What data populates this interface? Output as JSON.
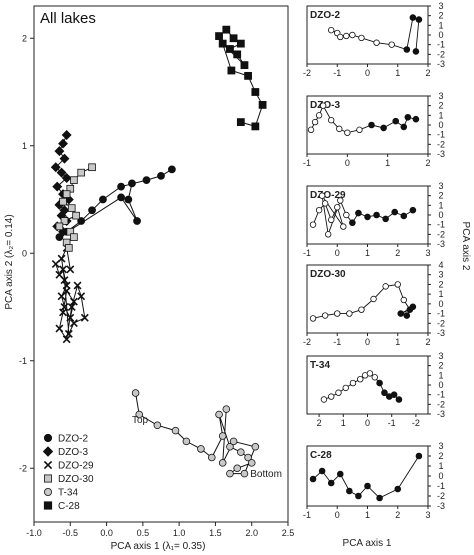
{
  "chart_data": {
    "type": "scatter",
    "main": {
      "title": "All lakes",
      "xlabel": "PCA axis 1 (λ₁= 0.35)",
      "ylabel": "PCA axis 2 (λ₂= 0.14)",
      "xlim": [
        -1.0,
        2.5
      ],
      "ylim": [
        -2.5,
        2.3
      ],
      "xticks": [
        -1.0,
        -0.5,
        0.0,
        0.5,
        1.0,
        1.5,
        2.0,
        2.5
      ],
      "xtick_labels": [
        "-1.0",
        "-0.5",
        "0.0",
        "0.5",
        "1.0",
        "1.5",
        "2.0",
        "2.5"
      ],
      "yticks": [
        -2,
        -1,
        0,
        1,
        2
      ],
      "ytick_labels": [
        "-2",
        "-1",
        "0",
        "1",
        "2"
      ],
      "annotations": [
        {
          "text": "Top",
          "x": 0.35,
          "y": -1.58
        },
        {
          "text": "Bottom",
          "x": 1.98,
          "y": -2.08
        }
      ],
      "legend": {
        "placement": "bottom-left",
        "entries": [
          {
            "label": "DZO-2",
            "marker": "circle-black"
          },
          {
            "label": "DZO-3",
            "marker": "diamond-black"
          },
          {
            "label": "DZO-29",
            "marker": "x"
          },
          {
            "label": "DZO-30",
            "marker": "square-gray"
          },
          {
            "label": "T-34",
            "marker": "circle-gray"
          },
          {
            "label": "C-28",
            "marker": "square-black"
          }
        ]
      },
      "series": [
        {
          "label": "DZO-2",
          "marker": "circle-black",
          "x": [
            0.9,
            0.75,
            0.55,
            0.2,
            -0.05,
            -0.2,
            -0.35,
            -0.55,
            -0.65,
            0.2,
            0.42,
            0.3,
            0.35
          ],
          "y": [
            0.78,
            0.72,
            0.68,
            0.62,
            0.5,
            0.4,
            0.3,
            0.2,
            0.15,
            0.52,
            0.3,
            0.5,
            0.65
          ]
        },
        {
          "label": "DZO-3",
          "marker": "diamond-black",
          "x": [
            -0.55,
            -0.6,
            -0.65,
            -0.58,
            -0.7,
            -0.62,
            -0.55,
            -0.68,
            -0.6,
            -0.52,
            -0.65,
            -0.58,
            -0.62,
            -0.55,
            -0.68,
            -0.6
          ],
          "y": [
            1.1,
            1.02,
            0.95,
            0.88,
            0.8,
            0.75,
            0.7,
            0.62,
            0.55,
            0.5,
            0.45,
            0.4,
            0.35,
            0.3,
            0.25,
            0.2
          ]
        },
        {
          "label": "DZO-29",
          "marker": "x",
          "x": [
            -0.7,
            -0.65,
            -0.6,
            -0.55,
            -0.62,
            -0.58,
            -0.5,
            -0.45,
            -0.55,
            -0.6,
            -0.65,
            -0.55,
            -0.48,
            -0.4,
            -0.35,
            -0.3,
            -0.45,
            -0.52,
            -0.58,
            -0.62,
            -0.55,
            -0.5
          ],
          "y": [
            -0.1,
            -0.2,
            -0.15,
            -0.3,
            -0.4,
            -0.5,
            -0.6,
            -0.45,
            -0.35,
            -0.55,
            -0.7,
            -0.8,
            -0.5,
            -0.3,
            -0.4,
            -0.6,
            -0.65,
            -0.75,
            -0.25,
            -0.05,
            0.05,
            -0.15
          ]
        },
        {
          "label": "DZO-30",
          "marker": "square-gray",
          "x": [
            -0.2,
            -0.35,
            -0.45,
            -0.5,
            -0.55,
            -0.6,
            -0.48,
            -0.42,
            -0.58,
            -0.65,
            -0.5,
            -0.45,
            -0.55,
            -0.52
          ],
          "y": [
            0.8,
            0.75,
            0.68,
            0.6,
            0.55,
            0.48,
            0.42,
            0.35,
            0.3,
            0.25,
            0.2,
            0.15,
            0.1,
            0.05
          ]
        },
        {
          "label": "T-34",
          "marker": "circle-gray",
          "x": [
            0.4,
            0.45,
            0.7,
            0.95,
            1.1,
            1.3,
            1.45,
            1.6,
            1.55,
            1.7,
            1.85,
            1.95,
            2.0,
            1.8,
            1.7,
            1.9,
            2.05,
            1.75,
            1.6,
            1.65
          ],
          "y": [
            -1.3,
            -1.5,
            -1.6,
            -1.65,
            -1.75,
            -1.82,
            -1.9,
            -1.7,
            -1.5,
            -1.8,
            -1.85,
            -1.9,
            -1.95,
            -2.0,
            -2.05,
            -2.05,
            -1.8,
            -1.75,
            -1.95,
            -1.45
          ]
        },
        {
          "label": "C-28",
          "marker": "square-black",
          "x": [
            1.55,
            1.65,
            1.75,
            1.85,
            1.7,
            1.8,
            1.9,
            1.6,
            1.72,
            1.95,
            2.05,
            2.15,
            2.05,
            1.85
          ],
          "y": [
            2.02,
            2.08,
            2.0,
            1.95,
            1.9,
            1.85,
            1.75,
            1.95,
            1.7,
            1.65,
            1.5,
            1.38,
            1.18,
            1.22
          ]
        }
      ]
    },
    "small_panels": {
      "shared_xlabel": "PCA axis 1",
      "shared_ylabel": "PCA axis 2",
      "panels": [
        {
          "label": "DZO-2",
          "xlim": [
            -2,
            2
          ],
          "ylim": [
            -3,
            3
          ],
          "xticks": [
            -2,
            -1,
            0,
            1,
            2
          ],
          "xtick_labels": [
            "-2",
            "-1",
            "0",
            "1",
            "2"
          ],
          "yticks": [
            -3,
            -2,
            -1,
            0,
            1,
            2,
            3
          ],
          "ytick_labels": [
            "-3",
            "-2",
            "-1",
            "0",
            "1",
            "2",
            "3"
          ],
          "x": [
            -1.2,
            -1.0,
            -0.9,
            -0.7,
            -0.5,
            -0.2,
            0.3,
            0.8,
            1.3,
            1.5,
            1.7,
            1.6
          ],
          "y": [
            0.5,
            0.2,
            -0.2,
            -0.1,
            0.0,
            -0.3,
            -0.8,
            -1.0,
            -1.5,
            1.8,
            1.6,
            -1.7
          ],
          "filled": [
            false,
            false,
            false,
            false,
            false,
            false,
            false,
            false,
            true,
            true,
            true,
            true
          ]
        },
        {
          "label": "DZO-3",
          "xlim": [
            -1,
            2
          ],
          "ylim": [
            -3,
            3
          ],
          "xticks": [
            -1,
            0,
            1,
            2
          ],
          "xtick_labels": [
            "-1",
            "0",
            "1",
            "2"
          ],
          "yticks": [
            -3,
            -2,
            -1,
            0,
            1,
            2,
            3
          ],
          "ytick_labels": [
            "-3",
            "-2",
            "-1",
            "0",
            "1",
            "2",
            "3"
          ],
          "x": [
            -0.9,
            -0.8,
            -0.7,
            -0.6,
            -0.4,
            -0.2,
            0.0,
            0.3,
            0.6,
            0.9,
            1.2,
            1.4,
            1.5,
            1.7
          ],
          "y": [
            -0.5,
            0.3,
            1.0,
            2.0,
            0.5,
            -0.4,
            -0.8,
            -0.5,
            0.0,
            -0.3,
            0.4,
            -0.2,
            0.8,
            0.6
          ],
          "filled": [
            false,
            false,
            false,
            false,
            false,
            false,
            false,
            false,
            true,
            true,
            true,
            true,
            true,
            true
          ]
        },
        {
          "label": "DZO-29",
          "xlim": [
            -1,
            3
          ],
          "ylim": [
            -3,
            3
          ],
          "xticks": [
            -1,
            0,
            1,
            2,
            3
          ],
          "xtick_labels": [
            "-1",
            "0",
            "1",
            "2",
            "3"
          ],
          "yticks": [
            -3,
            -2,
            -1,
            0,
            1,
            2,
            3
          ],
          "ytick_labels": [
            "-3",
            "-2",
            "-1",
            "0",
            "1",
            "2",
            "3"
          ],
          "x": [
            -0.8,
            -0.6,
            -0.4,
            -0.2,
            0.0,
            0.2,
            -0.5,
            -0.3,
            0.1,
            0.3,
            0.5,
            0.7,
            1.0,
            1.3,
            1.6,
            1.9,
            2.2,
            2.5
          ],
          "y": [
            -1.0,
            0.5,
            1.2,
            -0.5,
            0.8,
            -1.2,
            2.0,
            -2.0,
            1.5,
            0.0,
            -0.8,
            0.2,
            -0.2,
            0.0,
            -0.4,
            0.3,
            -0.1,
            0.5
          ],
          "filled": [
            false,
            false,
            false,
            false,
            false,
            false,
            false,
            false,
            false,
            false,
            true,
            true,
            true,
            true,
            true,
            true,
            true,
            true
          ]
        },
        {
          "label": "DZO-30",
          "xlim": [
            -2,
            2
          ],
          "ylim": [
            -3,
            4
          ],
          "xticks": [
            -2,
            -1,
            0,
            1,
            2
          ],
          "xtick_labels": [
            "-2",
            "-1",
            "0",
            "1",
            "2"
          ],
          "yticks": [
            -3,
            -2,
            -1,
            0,
            1,
            2,
            3,
            4
          ],
          "ytick_labels": [
            "-3",
            "-2",
            "-1",
            "0",
            "1",
            "2",
            "3",
            "4"
          ],
          "x": [
            -1.8,
            -1.4,
            -1.0,
            -0.6,
            -0.2,
            0.2,
            0.6,
            1.0,
            1.2,
            1.4,
            1.1,
            1.5,
            1.3
          ],
          "y": [
            -1.5,
            -1.2,
            -1.0,
            -1.0,
            -0.6,
            0.5,
            1.8,
            2.0,
            0.4,
            -0.6,
            -1.0,
            -0.3,
            -1.2
          ],
          "filled": [
            false,
            false,
            false,
            false,
            false,
            false,
            false,
            false,
            false,
            true,
            true,
            true,
            true
          ]
        },
        {
          "label": "T-34",
          "xlim": [
            2.5,
            -2.5
          ],
          "ylim": [
            -3,
            3
          ],
          "xticks": [
            2,
            1,
            0,
            -1,
            -2
          ],
          "xtick_labels": [
            "2",
            "1",
            "0",
            "-1",
            "-2"
          ],
          "yticks": [
            -3,
            -2,
            -1,
            0,
            1,
            2,
            3
          ],
          "ytick_labels": [
            "-3",
            "-2",
            "-1",
            "0",
            "1",
            "2",
            "3"
          ],
          "x": [
            1.8,
            1.5,
            1.2,
            0.9,
            0.6,
            0.3,
            0.1,
            -0.1,
            -0.3,
            -0.5,
            -0.7,
            -0.9,
            -1.1,
            -1.3
          ],
          "y": [
            -1.5,
            -1.2,
            -0.8,
            -0.3,
            0.2,
            0.6,
            1.0,
            1.2,
            0.8,
            0.2,
            -0.8,
            -1.2,
            -1.0,
            -1.5
          ],
          "filled": [
            false,
            false,
            false,
            false,
            false,
            false,
            false,
            false,
            false,
            true,
            true,
            true,
            true,
            true
          ]
        },
        {
          "label": "C-28",
          "xlim": [
            -1,
            3
          ],
          "ylim": [
            -3,
            3
          ],
          "xticks": [
            -1,
            0,
            1,
            2,
            3
          ],
          "xtick_labels": [
            "-1",
            "0",
            "1",
            "2",
            "3"
          ],
          "yticks": [
            -3,
            -2,
            -1,
            0,
            1,
            2,
            3
          ],
          "ytick_labels": [
            "-3",
            "-2",
            "-1",
            "0",
            "1",
            "2",
            "3"
          ],
          "x": [
            -0.8,
            -0.5,
            -0.2,
            0.1,
            0.4,
            0.7,
            1.0,
            1.4,
            2.0,
            2.7
          ],
          "y": [
            -0.3,
            0.5,
            -0.7,
            0.2,
            -1.5,
            -2.0,
            -1.0,
            -2.2,
            -1.3,
            2.0
          ],
          "filled": [
            true,
            true,
            true,
            true,
            true,
            true,
            true,
            true,
            true,
            true
          ]
        }
      ]
    }
  }
}
